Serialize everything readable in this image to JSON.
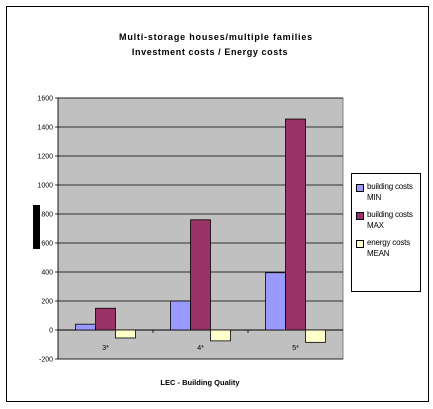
{
  "chart_data": {
    "type": "bar",
    "title": [
      "Multi-storage houses/multiple families",
      "Investment costs / Energy costs"
    ],
    "xlabel": "LEC - Building Quality",
    "ylabel": "",
    "categories": [
      "3*",
      "4*",
      "5*"
    ],
    "ylim": [
      -200,
      1600
    ],
    "yticks": [
      -200,
      0,
      200,
      400,
      600,
      800,
      1000,
      1200,
      1400,
      1600
    ],
    "grid": true,
    "legend_position": "right",
    "series": [
      {
        "name": "building costs MIN",
        "values": [
          40,
          200,
          395
        ],
        "color": "#9999ff"
      },
      {
        "name": "building costs MAX",
        "values": [
          150,
          760,
          1455
        ],
        "color": "#993366"
      },
      {
        "name": "energy costs MEAN",
        "values": [
          -55,
          -75,
          -85
        ],
        "color": "#ffffcc"
      }
    ],
    "plot_background": "#c0c0c0"
  }
}
